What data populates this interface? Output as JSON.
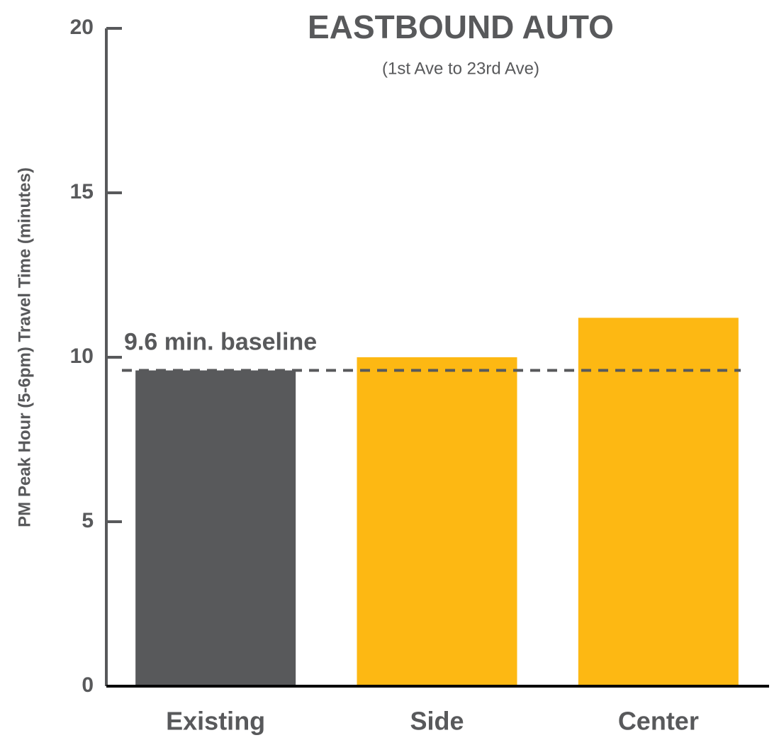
{
  "chart_data": {
    "type": "bar",
    "title": "EASTBOUND AUTO",
    "subtitle": "(1st Ave to 23rd Ave)",
    "y_label": "PM Peak Hour (5-6pm) Travel Time (minutes)",
    "categories": [
      "Existing",
      "Side",
      "Center"
    ],
    "values": [
      9.6,
      10.0,
      11.2
    ],
    "colors": [
      "#58595b",
      "#fdb813",
      "#fdb813"
    ],
    "ylim": [
      0,
      20
    ],
    "yticks": [
      0,
      5,
      10,
      15,
      20
    ],
    "baseline": {
      "value": 9.6,
      "label": "9.6 min. baseline"
    },
    "grid": false
  }
}
